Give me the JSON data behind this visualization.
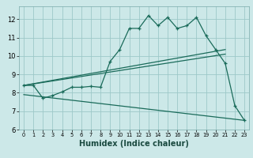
{
  "title": "",
  "xlabel": "Humidex (Indice chaleur)",
  "bg_color": "#cce8e8",
  "grid_color": "#9dc8c8",
  "line_color": "#1a6b5a",
  "xlim": [
    -0.5,
    23.5
  ],
  "ylim": [
    6,
    12.7
  ],
  "xticks": [
    0,
    1,
    2,
    3,
    4,
    5,
    6,
    7,
    8,
    9,
    10,
    11,
    12,
    13,
    14,
    15,
    16,
    17,
    18,
    19,
    20,
    21,
    22,
    23
  ],
  "yticks": [
    6,
    7,
    8,
    9,
    10,
    11,
    12
  ],
  "series1_x": [
    0,
    1,
    2,
    3,
    4,
    5,
    6,
    7,
    8,
    9,
    10,
    11,
    12,
    13,
    14,
    15,
    16,
    17,
    18,
    19,
    20,
    21,
    22,
    23
  ],
  "series1_y": [
    8.4,
    8.4,
    7.7,
    7.85,
    8.05,
    8.3,
    8.3,
    8.35,
    8.3,
    9.7,
    10.35,
    11.5,
    11.5,
    12.2,
    11.65,
    12.1,
    11.5,
    11.65,
    12.1,
    11.1,
    10.35,
    9.6,
    7.3,
    6.5
  ],
  "series2_x": [
    0,
    21
  ],
  "series2_y": [
    8.4,
    10.35
  ],
  "series3_x": [
    0,
    21
  ],
  "series3_y": [
    8.4,
    10.1
  ],
  "series4_x": [
    0,
    23
  ],
  "series4_y": [
    7.9,
    6.5
  ]
}
